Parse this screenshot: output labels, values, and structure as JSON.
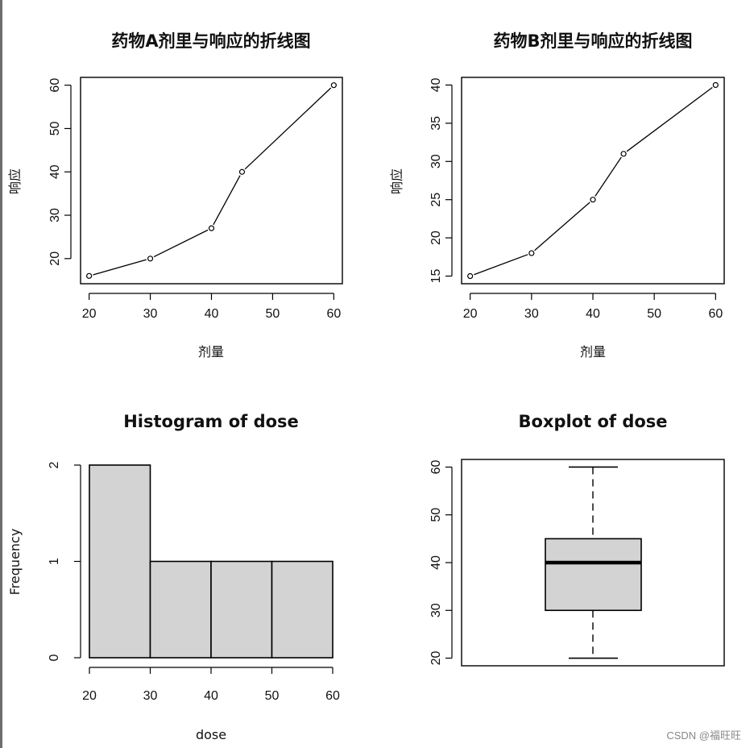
{
  "chart_data": [
    {
      "type": "line",
      "title": "药物A剂里与响应的折线图",
      "xlabel": "剂量",
      "ylabel": "响应",
      "x": [
        20,
        30,
        40,
        45,
        60
      ],
      "y": [
        16,
        20,
        27,
        40,
        60
      ],
      "xticks": [
        20,
        30,
        40,
        50,
        60
      ],
      "yticks": [
        20,
        30,
        40,
        50,
        60
      ],
      "xlim": [
        18.6,
        61.4
      ],
      "ylim": [
        14.2,
        61.8
      ],
      "markers": "open-circle",
      "grid": false
    },
    {
      "type": "line",
      "title": "药物B剂里与响应的折线图",
      "xlabel": "剂量",
      "ylabel": "响应",
      "x": [
        20,
        30,
        40,
        45,
        60
      ],
      "y": [
        15,
        18,
        25,
        31,
        40
      ],
      "xticks": [
        20,
        30,
        40,
        50,
        60
      ],
      "yticks": [
        15,
        20,
        25,
        30,
        35,
        40
      ],
      "xlim": [
        18.6,
        61.4
      ],
      "ylim": [
        14.0,
        41.0
      ],
      "markers": "open-circle",
      "grid": false
    },
    {
      "type": "bar",
      "subtype": "histogram",
      "title": "Histogram of dose",
      "xlabel": "dose",
      "ylabel": "Frequency",
      "bins": [
        [
          20,
          30
        ],
        [
          30,
          40
        ],
        [
          40,
          50
        ],
        [
          50,
          60
        ]
      ],
      "values": [
        2,
        1,
        1,
        1
      ],
      "xticks": [
        20,
        30,
        40,
        50,
        60
      ],
      "yticks": [
        0,
        1,
        2
      ],
      "bar_color": "#d3d3d3"
    },
    {
      "type": "boxplot",
      "title": "Boxplot of dose",
      "min": 20,
      "q1": 30,
      "median": 40,
      "q3": 45,
      "max": 60,
      "yticks": [
        20,
        30,
        40,
        50,
        60
      ],
      "ylim": [
        18.4,
        61.6
      ],
      "box_color": "#d3d3d3"
    }
  ],
  "watermark": "CSDN @福旺旺"
}
